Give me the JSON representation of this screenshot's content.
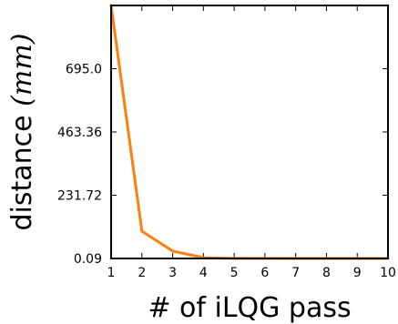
{
  "chart_data": {
    "type": "line",
    "xlabel": "# of iLQG pass",
    "ylabel_text": "distance ",
    "ylabel_unit": "(mm)",
    "x_ticks": [
      "1",
      "2",
      "3",
      "4",
      "5",
      "6",
      "7",
      "8",
      "9",
      "10"
    ],
    "y_ticks": [
      "0.09",
      "231.72",
      "463.36",
      "695.0"
    ],
    "y_tick_values": [
      0.09,
      231.72,
      463.36,
      695.0
    ],
    "xlim": [
      1,
      10
    ],
    "ylim": [
      0.09,
      926.6
    ],
    "grid": false,
    "series": [
      {
        "x": [
          1,
          2,
          3,
          4,
          5,
          6,
          7,
          8,
          9,
          10
        ],
        "y": [
          926.6,
          100.0,
          27.0,
          3.0,
          0.5,
          0.3,
          0.2,
          0.1,
          0.1,
          0.1
        ],
        "color": "#ff7f0e"
      }
    ]
  }
}
